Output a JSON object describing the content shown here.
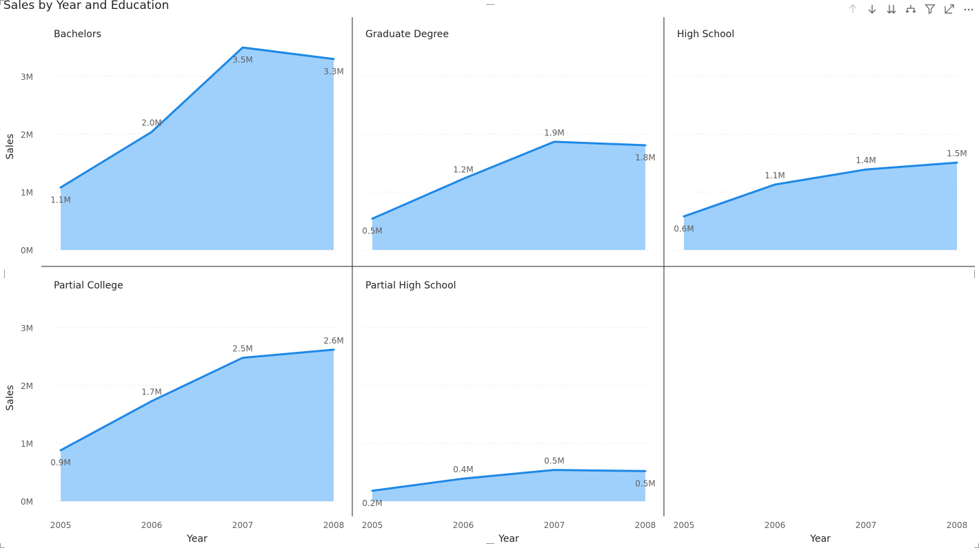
{
  "title": "Sales by Year and Education",
  "toolbar": [
    {
      "name": "drill-up-icon"
    },
    {
      "name": "drill-down-icon"
    },
    {
      "name": "expand-next-level-icon"
    },
    {
      "name": "expand-hierarchy-icon"
    },
    {
      "name": "filter-icon"
    },
    {
      "name": "focus-mode-icon"
    },
    {
      "name": "more-options-icon"
    }
  ],
  "colors": {
    "line": "#1e88e5",
    "area": "#9fd0fc",
    "grid": "#d0d0d0",
    "divider": "#222222",
    "text": "#605e5c",
    "title": "#252423"
  },
  "chart_data": {
    "type": "area",
    "title": "Sales by Year and Education",
    "xlabel": "Year",
    "ylabel": "Sales",
    "x": [
      2005,
      2006,
      2007,
      2008
    ],
    "yticks": [
      "0M",
      "1M",
      "2M",
      "3M"
    ],
    "ylim": [
      0,
      4000000
    ],
    "grid": true,
    "small_multiples": [
      {
        "name": "Bachelors",
        "values": [
          1080000,
          2040000,
          3500000,
          3300000
        ],
        "labels": [
          "1.1M",
          "2.0M",
          "3.5M",
          "3.3M"
        ]
      },
      {
        "name": "Graduate Degree",
        "values": [
          540000,
          1230000,
          1870000,
          1810000
        ],
        "labels": [
          "0.5M",
          "1.2M",
          "1.9M",
          "1.8M"
        ]
      },
      {
        "name": "High School",
        "values": [
          580000,
          1130000,
          1390000,
          1510000
        ],
        "labels": [
          "0.6M",
          "1.1M",
          "1.4M",
          "1.5M"
        ]
      },
      {
        "name": "Partial College",
        "values": [
          880000,
          1730000,
          2480000,
          2620000
        ],
        "labels": [
          "0.9M",
          "1.7M",
          "2.5M",
          "2.6M"
        ]
      },
      {
        "name": "Partial High School",
        "values": [
          180000,
          390000,
          540000,
          520000
        ],
        "labels": [
          "0.2M",
          "0.4M",
          "0.5M",
          "0.5M"
        ]
      }
    ]
  }
}
